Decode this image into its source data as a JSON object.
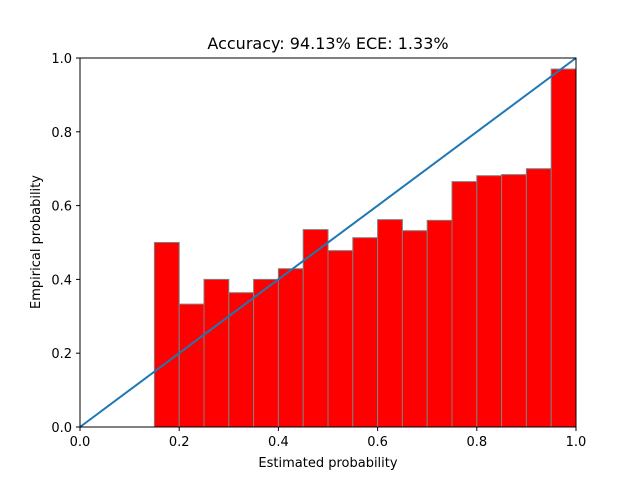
{
  "chart_data": {
    "type": "bar",
    "title": "Accuracy: 94.13% ECE: 1.33%",
    "xlabel": "Estimated probability",
    "ylabel": "Empirical probability",
    "xlim": [
      0.0,
      1.0
    ],
    "ylim": [
      0.0,
      1.0
    ],
    "x_ticks": [
      "0.0",
      "0.2",
      "0.4",
      "0.6",
      "0.8",
      "1.0"
    ],
    "y_ticks": [
      "0.0",
      "0.2",
      "0.4",
      "0.6",
      "0.8",
      "1.0"
    ],
    "bin_width": 0.05,
    "bins": [
      {
        "x0": 0.15,
        "value": 0.5
      },
      {
        "x0": 0.2,
        "value": 0.333
      },
      {
        "x0": 0.25,
        "value": 0.4
      },
      {
        "x0": 0.3,
        "value": 0.364
      },
      {
        "x0": 0.35,
        "value": 0.4
      },
      {
        "x0": 0.4,
        "value": 0.429
      },
      {
        "x0": 0.45,
        "value": 0.535
      },
      {
        "x0": 0.5,
        "value": 0.478
      },
      {
        "x0": 0.55,
        "value": 0.513
      },
      {
        "x0": 0.6,
        "value": 0.562
      },
      {
        "x0": 0.65,
        "value": 0.532
      },
      {
        "x0": 0.7,
        "value": 0.56
      },
      {
        "x0": 0.75,
        "value": 0.665
      },
      {
        "x0": 0.8,
        "value": 0.681
      },
      {
        "x0": 0.85,
        "value": 0.684
      },
      {
        "x0": 0.9,
        "value": 0.7
      },
      {
        "x0": 0.95,
        "value": 0.97
      }
    ],
    "reference_line": {
      "from": [
        0.0,
        0.0
      ],
      "to": [
        1.0,
        1.0
      ]
    },
    "colors": {
      "bar_fill": "#ff0000",
      "bar_edge": "#808080",
      "line": "#1f77b4"
    },
    "grid": false
  }
}
